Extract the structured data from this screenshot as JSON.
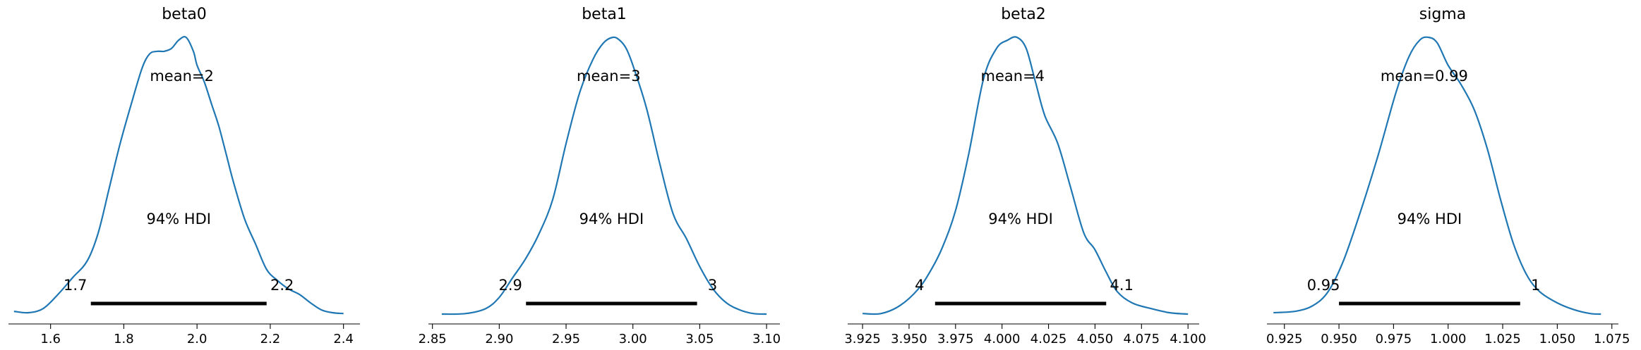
{
  "chart_data": [
    {
      "type": "area",
      "title": "beta0",
      "mean_label": "mean=2",
      "hdi_label": "94% HDI",
      "hdi_low_label": "1.7",
      "hdi_high_label": "2.2",
      "hdi": [
        1.71,
        2.19
      ],
      "xlim": [
        1.485,
        2.445
      ],
      "xticks": [
        1.6,
        1.8,
        2.0,
        2.2,
        2.4
      ],
      "xtick_labels": [
        "1.6",
        "1.8",
        "2.0",
        "2.2",
        "2.4"
      ],
      "density": {
        "x": [
          1.5,
          1.54,
          1.58,
          1.62,
          1.66,
          1.7,
          1.73,
          1.76,
          1.79,
          1.82,
          1.85,
          1.87,
          1.89,
          1.91,
          1.93,
          1.95,
          1.97,
          1.99,
          2.0,
          2.02,
          2.04,
          2.06,
          2.08,
          2.1,
          2.13,
          2.16,
          2.19,
          2.22,
          2.25,
          2.28,
          2.31,
          2.34,
          2.37,
          2.4
        ],
        "y": [
          0.02,
          0.015,
          0.03,
          0.08,
          0.14,
          0.2,
          0.3,
          0.46,
          0.62,
          0.76,
          0.89,
          0.94,
          0.95,
          0.95,
          0.96,
          0.99,
          1.0,
          0.95,
          0.9,
          0.84,
          0.76,
          0.68,
          0.58,
          0.48,
          0.35,
          0.26,
          0.17,
          0.13,
          0.1,
          0.08,
          0.05,
          0.025,
          0.015,
          0.012
        ]
      }
    },
    {
      "type": "area",
      "title": "beta1",
      "mean_label": "mean=3",
      "hdi_label": "94% HDI",
      "hdi_low_label": "2.9",
      "hdi_high_label": "3",
      "hdi": [
        2.92,
        3.048
      ],
      "xlim": [
        2.847,
        3.11
      ],
      "xticks": [
        2.85,
        2.9,
        2.95,
        3.0,
        3.05,
        3.1
      ],
      "xtick_labels": [
        "2.85",
        "2.90",
        "2.95",
        "3.00",
        "3.05",
        "3.10"
      ],
      "density": {
        "x": [
          2.857,
          2.875,
          2.89,
          2.9,
          2.91,
          2.92,
          2.93,
          2.94,
          2.95,
          2.96,
          2.97,
          2.978,
          2.985,
          2.99,
          2.995,
          3.0,
          3.01,
          3.02,
          3.03,
          3.04,
          3.05,
          3.06,
          3.07,
          3.08,
          3.09,
          3.1
        ],
        "y": [
          0.01,
          0.012,
          0.03,
          0.07,
          0.14,
          0.21,
          0.3,
          0.42,
          0.62,
          0.8,
          0.92,
          0.98,
          1.0,
          0.99,
          0.96,
          0.9,
          0.75,
          0.55,
          0.37,
          0.28,
          0.18,
          0.1,
          0.05,
          0.025,
          0.012,
          0.01
        ]
      }
    },
    {
      "type": "area",
      "title": "beta2",
      "mean_label": "mean=4",
      "hdi_label": "94% HDI",
      "hdi_low_label": "4",
      "hdi_high_label": "4.1",
      "hdi": [
        3.964,
        4.056
      ],
      "xlim": [
        3.917,
        4.106
      ],
      "xticks": [
        3.925,
        3.95,
        3.975,
        4.0,
        4.025,
        4.05,
        4.075,
        4.1
      ],
      "xtick_labels": [
        "3.925",
        "3.950",
        "3.975",
        "4.000",
        "4.025",
        "4.050",
        "4.075",
        "4.100"
      ],
      "density": {
        "x": [
          3.925,
          3.935,
          3.945,
          3.955,
          3.962,
          3.968,
          3.975,
          3.982,
          3.99,
          3.997,
          4.003,
          4.008,
          4.013,
          4.018,
          4.023,
          4.03,
          4.037,
          4.044,
          4.05,
          4.056,
          4.062,
          4.07,
          4.08,
          4.09,
          4.1
        ],
        "y": [
          0.012,
          0.012,
          0.04,
          0.1,
          0.17,
          0.25,
          0.38,
          0.58,
          0.85,
          0.96,
          0.99,
          1.0,
          0.96,
          0.84,
          0.72,
          0.62,
          0.46,
          0.3,
          0.24,
          0.16,
          0.09,
          0.05,
          0.03,
          0.015,
          0.01
        ]
      }
    },
    {
      "type": "area",
      "title": "sigma",
      "mean_label": "mean=0.99",
      "hdi_label": "94% HDI",
      "hdi_low_label": "0.95",
      "hdi_high_label": "1",
      "hdi": [
        0.95,
        1.033
      ],
      "xlim": [
        0.917,
        1.078
      ],
      "xticks": [
        0.925,
        0.95,
        0.975,
        1.0,
        1.025,
        1.05,
        1.075
      ],
      "xtick_labels": [
        "0.925",
        "0.950",
        "0.975",
        "1.000",
        "1.025",
        "1.050",
        "1.075"
      ],
      "density": {
        "x": [
          0.92,
          0.93,
          0.938,
          0.945,
          0.952,
          0.96,
          0.968,
          0.976,
          0.982,
          0.987,
          0.991,
          0.995,
          1.0,
          1.006,
          1.012,
          1.018,
          1.024,
          1.03,
          1.036,
          1.042,
          1.05,
          1.058,
          1.065,
          1.07
        ],
        "y": [
          0.015,
          0.02,
          0.04,
          0.09,
          0.2,
          0.38,
          0.58,
          0.8,
          0.93,
          0.99,
          1.0,
          0.98,
          0.9,
          0.83,
          0.74,
          0.6,
          0.42,
          0.26,
          0.15,
          0.09,
          0.05,
          0.025,
          0.012,
          0.01
        ]
      }
    }
  ],
  "style": {
    "kde_color": "#1f77b4",
    "hdi_color": "#000000",
    "axis_color": "#000000"
  }
}
